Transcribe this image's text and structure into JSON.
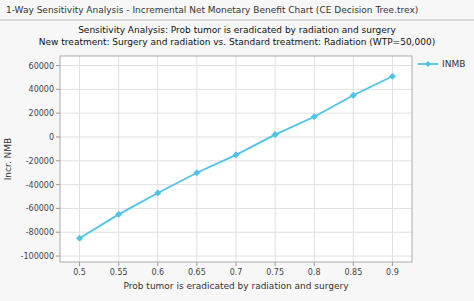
{
  "chart_data": {
    "type": "line",
    "title_bar": "1-Way Sensitivity Analysis - Incremental Net Monetary Benefit Chart (CE Decision Tree.trex)",
    "title": "Sensitivity Analysis: Prob tumor is eradicated by radiation and surgery",
    "subtitle": "New treatment: Surgery and radiation vs. Standard treatment: Radiation (WTP=50,000)",
    "x_label": "Prob tumor is eradicated by radiation and surgery",
    "y_label": "Incr. NMB",
    "x": [
      0.5,
      0.55,
      0.6,
      0.65,
      0.7,
      0.75,
      0.8,
      0.85,
      0.9
    ],
    "series": [
      {
        "name": "INMB",
        "color": "#4FC3E8",
        "marker": "diamond",
        "values": [
          -85000,
          -65000,
          -47000,
          -30000,
          -15000,
          2000,
          17000,
          35000,
          51000
        ]
      }
    ],
    "xlim": [
      0.475,
      0.925
    ],
    "ylim": [
      -105000,
      68000
    ],
    "xticks": [
      0.5,
      0.55,
      0.6,
      0.65,
      0.7,
      0.75,
      0.8,
      0.85,
      0.9
    ],
    "yticks": [
      -100000,
      -80000,
      -60000,
      -40000,
      -20000,
      0,
      20000,
      40000,
      60000
    ],
    "grid": true,
    "legend": "right"
  }
}
